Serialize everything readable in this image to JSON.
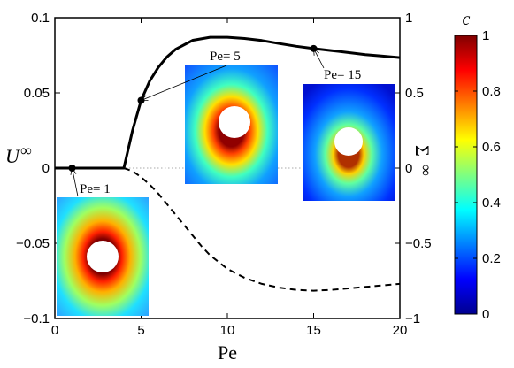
{
  "chart_data": {
    "type": "line",
    "xlabel": "Pe",
    "ylabel": "U",
    "ylabel_sup": "∞",
    "y2label": "Σ",
    "y2label_sup": "∞",
    "xlim": [
      0,
      20
    ],
    "ylim": [
      -0.1,
      0.1
    ],
    "y2lim": [
      -1,
      1
    ],
    "x_ticks": [
      0,
      5,
      10,
      15,
      20
    ],
    "x_tick_labels": [
      "0",
      "5",
      "10",
      "15",
      "20"
    ],
    "y_ticks": [
      -0.1,
      -0.05,
      0,
      0.05,
      0.1
    ],
    "y_tick_labels": [
      "−0.1",
      "−0.05",
      "0",
      "0.05",
      "0.1"
    ],
    "y2_ticks": [
      -1,
      -0.5,
      0,
      0.5,
      1
    ],
    "y2_tick_labels": [
      "−1",
      "−0.5",
      "0",
      "0.5",
      "1"
    ],
    "grid": false,
    "zero_line": true,
    "series": [
      {
        "axis": "left",
        "style": "solid",
        "x": [
          0,
          1,
          2,
          3,
          4,
          4.5,
          5,
          5.5,
          6,
          6.5,
          7,
          8,
          9,
          10,
          11,
          12,
          13,
          14,
          15,
          16,
          17,
          18,
          19,
          20
        ],
        "y": [
          0,
          0,
          0,
          0,
          0,
          0.025,
          0.045,
          0.058,
          0.067,
          0.074,
          0.079,
          0.085,
          0.087,
          0.087,
          0.0862,
          0.0848,
          0.0828,
          0.081,
          0.0795,
          0.0782,
          0.0768,
          0.0755,
          0.0745,
          0.0735
        ]
      },
      {
        "axis": "right",
        "style": "dashed",
        "x": [
          4,
          4.5,
          5,
          5.5,
          6,
          6.5,
          7,
          7.5,
          8,
          8.5,
          9,
          10,
          11,
          12,
          13,
          14,
          15,
          16,
          17,
          18,
          19,
          20
        ],
        "y": [
          0,
          -0.02,
          -0.06,
          -0.11,
          -0.17,
          -0.24,
          -0.31,
          -0.38,
          -0.45,
          -0.52,
          -0.58,
          -0.67,
          -0.73,
          -0.77,
          -0.795,
          -0.81,
          -0.815,
          -0.81,
          -0.8,
          -0.79,
          -0.78,
          -0.77
        ]
      }
    ],
    "markers": [
      {
        "x": 1,
        "y": 0,
        "label": "Pe= 1"
      },
      {
        "x": 5,
        "y": 0.045,
        "label": "Pe= 5"
      },
      {
        "x": 15,
        "y": 0.0795,
        "label": "Pe= 15"
      }
    ],
    "colorbar": {
      "label": "c",
      "ticks": [
        0,
        0.2,
        0.4,
        0.6,
        0.8,
        1
      ],
      "tick_labels": [
        "0",
        "0.2",
        "0.4",
        "0.6",
        "0.8",
        "1"
      ],
      "colormap": "jet"
    }
  }
}
